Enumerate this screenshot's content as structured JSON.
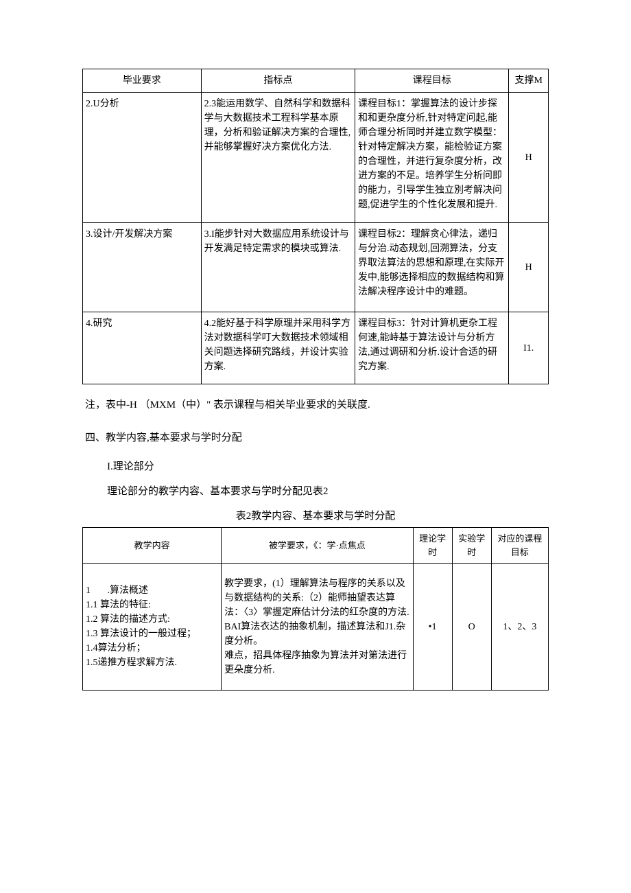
{
  "table1": {
    "headers": {
      "req": "毕业要求",
      "ind": "指标点",
      "goal": "课程目标",
      "sup": "支撑M"
    },
    "rows": [
      {
        "req": "2.U分析",
        "ind": "2.3能运用数学、自然科学和数据科学与大数据技术工程科学基本原理，分析和验证解决方案的合理性,并能够掌握好决方案优化方法.",
        "goal": "课程目标1：掌握算法的设计步探和和更杂度分析,针对特定问起,能师合理分析同时并建立数学模型：针对特定解决方案，能检验证方案的合理性，并进行复杂度分析，改进方案的不足。培养学生分析问即的能力，引导学生独立別考解决问题,促进学生的个性化发展和提升.",
        "sup": "H"
      },
      {
        "req": "3.设计/开发解决方案",
        "ind": "3.I能步针对大数据应用系统设计与开发满足特定需求的模块或算法.",
        "goal": "课程目标2：理解贪心律法，递归与分治.动态规划,回溯算法，分支界取法算法的思想和原理,在实际开发中,能够选择相应的数据结构和算法解决程序设计中的难题。",
        "sup": "H"
      },
      {
        "req": "4.研究",
        "ind": "4.2能好基于科学原理并采用科学方法对数据科学叮大数据技术领域相关问题选择研究路线，并设计实验方案.",
        "goal": "课程目标3：针对计算机更杂工程何速,能峙基于算法设计与分析方法,通过调研和分析.设计合适的研究方案.",
        "sup": "I1."
      }
    ]
  },
  "note": "注，表中-H （MXM（中）\" 表示课程与相关毕业要求的关联度.",
  "section4": "四、教学内容,基本要求与学时分配",
  "theory_title": "I.理论部分",
  "theory_desc": "理论部分的教学内容、基本要求与学时分配见表2",
  "table2_caption": "表2教学内容、基本要求与学时分配",
  "table2": {
    "headers": {
      "content": "教学内容",
      "req": "被学要求，《：学·点焦点",
      "theory": "理论学时",
      "exp": "实验学时",
      "goal": "对应的课程目标"
    },
    "rows": [
      {
        "content": "1       .算法概述\n1.1 算法的特征:\n1.2 算法的描述方式:\n1.3 算法设计的一般过程；\n1.4算法分析；\n1.5递推方程求解方法.",
        "req": "教学要求，(1）理解算法与程序的关系以及与数据结构的关系:（2）能师抽望表达算法：〈3〉掌握定麻估计分法的红杂度的方法.\nBAI算法衣达的抽象机制，描述算法和J1.杂度分析。\n难点，招具体程序抽象为算法并对第法进行更朵度分析.",
        "theory": "•1",
        "exp": "O",
        "goal": "1、2、3"
      }
    ]
  }
}
